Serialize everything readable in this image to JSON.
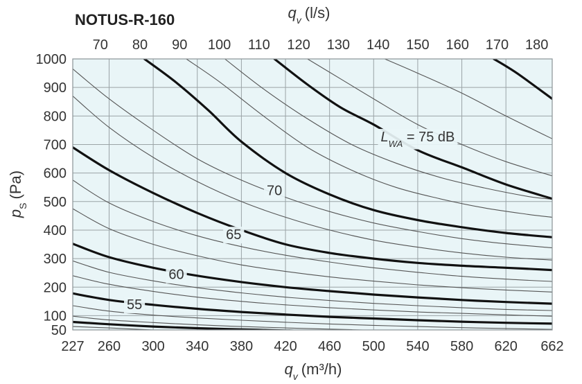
{
  "chart_data": {
    "type": "line",
    "title": "NOTUS-R-160",
    "x_bottom": {
      "label_symbol": "q",
      "label_sub": "v",
      "label_unit": "(m³/h)",
      "ticks": [
        "227",
        "260",
        "300",
        "340",
        "380",
        "420",
        "460",
        "500",
        "540",
        "580",
        "620",
        "662"
      ],
      "range": [
        227,
        662
      ]
    },
    "x_top": {
      "label_symbol": "q",
      "label_sub": "v",
      "label_unit": "(l/s)",
      "ticks": [
        "70",
        "80",
        "90",
        "100",
        "110",
        "120",
        "130",
        "140",
        "150",
        "160",
        "170",
        "180"
      ]
    },
    "y": {
      "label_symbol": "p",
      "label_sub": "S",
      "label_unit": "(Pa)",
      "ticks": [
        "50",
        "100",
        "200",
        "300",
        "400",
        "500",
        "600",
        "700",
        "800",
        "900",
        "1000"
      ],
      "range": [
        50,
        1000
      ]
    },
    "background_color": "#e9f5f7",
    "grid_color": "#9aa3a6",
    "major_line_color": "#111111",
    "minor_line_color": "#555555",
    "label_gap_color": "#c8c8c8",
    "series": [
      {
        "kind": "minor",
        "x": [
          227,
          260,
          300,
          340,
          380,
          420,
          427
        ],
        "y": [
          62,
          57,
          50,
          45,
          40,
          35,
          32
        ]
      },
      {
        "kind": "major",
        "x": [
          227,
          260,
          300,
          340,
          380,
          420,
          430,
          500,
          540,
          580,
          620,
          662
        ],
        "y": [
          78,
          70,
          62,
          56,
          52,
          48,
          47,
          35,
          33,
          29,
          27,
          25
        ]
      },
      {
        "kind": "minor",
        "x": [
          227,
          260,
          300,
          340,
          380,
          420,
          460,
          500,
          540,
          580,
          620,
          662
        ],
        "y": [
          98,
          85,
          76,
          68,
          62,
          57,
          53,
          49,
          46,
          43,
          41,
          40
        ]
      },
      {
        "kind": "minor",
        "x": [
          227,
          260,
          300,
          340,
          380,
          420,
          460,
          500,
          540,
          580,
          620,
          662
        ],
        "y": [
          135,
          116,
          102,
          92,
          84,
          77,
          71,
          66,
          62,
          58,
          55,
          52
        ]
      },
      {
        "kind": "major",
        "x": [
          227,
          260,
          300,
          340,
          380,
          420,
          460,
          500,
          540,
          580,
          620,
          662
        ],
        "y": [
          178,
          155,
          138,
          124,
          113,
          104,
          96,
          90,
          84,
          79,
          75,
          72
        ]
      },
      {
        "kind": "minor",
        "x": [
          227,
          260,
          300,
          340,
          380,
          420,
          460,
          500,
          540,
          580,
          620,
          662
        ],
        "y": [
          240,
          210,
          185,
          165,
          150,
          138,
          128,
          120,
          113,
          108,
          103,
          98
        ]
      },
      {
        "kind": "minor",
        "x": [
          227,
          260,
          300,
          340,
          380,
          420,
          460,
          500,
          540,
          580,
          620,
          662
        ],
        "y": [
          292,
          252,
          222,
          198,
          180,
          165,
          153,
          143,
          135,
          128,
          122,
          118
        ]
      },
      {
        "kind": "major",
        "x": [
          227,
          260,
          300,
          340,
          380,
          420,
          460,
          500,
          540,
          580,
          620,
          662
        ],
        "y": [
          352,
          305,
          268,
          240,
          218,
          200,
          186,
          174,
          164,
          155,
          148,
          142
        ]
      },
      {
        "kind": "minor",
        "x": [
          227,
          260,
          300,
          340,
          380,
          420,
          460,
          500,
          540,
          580,
          620,
          662
        ],
        "y": [
          475,
          405,
          350,
          310,
          278,
          255,
          236,
          221,
          208,
          198,
          190,
          183
        ]
      },
      {
        "kind": "minor",
        "x": [
          227,
          260,
          300,
          340,
          380,
          420,
          460,
          500,
          540,
          580,
          620,
          662
        ],
        "y": [
          575,
          495,
          430,
          380,
          342,
          312,
          288,
          268,
          252,
          238,
          228,
          220
        ]
      },
      {
        "kind": "major",
        "x": [
          227,
          260,
          300,
          340,
          380,
          420,
          460,
          500,
          540,
          580,
          620,
          662
        ],
        "y": [
          690,
          610,
          530,
          460,
          400,
          350,
          320,
          300,
          285,
          275,
          268,
          260
        ]
      },
      {
        "kind": "minor",
        "x": [
          227,
          260,
          300,
          340,
          380,
          420,
          460,
          500,
          540,
          580,
          620,
          662
        ],
        "y": [
          870,
          760,
          655,
          570,
          500,
          445,
          400,
          365,
          340,
          320,
          305,
          295
        ]
      },
      {
        "kind": "minor",
        "x": [
          227,
          260,
          300,
          340,
          380,
          420,
          460,
          500,
          540,
          580,
          620,
          662
        ],
        "y": [
          965,
          860,
          750,
          650,
          575,
          515,
          465,
          425,
          395,
          370,
          352,
          338
        ]
      },
      {
        "kind": "major",
        "x": [
          292,
          320,
          350,
          380,
          420,
          460,
          500,
          540,
          580,
          620,
          662
        ],
        "y": [
          1000,
          920,
          820,
          710,
          600,
          525,
          470,
          435,
          410,
          390,
          375
        ]
      },
      {
        "kind": "minor",
        "x": [
          330,
          360,
          400,
          440,
          480,
          520,
          560,
          600,
          640,
          662
        ],
        "y": [
          1000,
          920,
          800,
          690,
          610,
          550,
          510,
          478,
          455,
          445
        ]
      },
      {
        "kind": "minor",
        "x": [
          365,
          400,
          440,
          480,
          520,
          560,
          600,
          640,
          662
        ],
        "y": [
          1000,
          895,
          790,
          700,
          635,
          585,
          548,
          518,
          508
        ]
      },
      {
        "kind": "major",
        "x": [
          410,
          440,
          470,
          500,
          540,
          580,
          620,
          662
        ],
        "y": [
          1000,
          910,
          830,
          770,
          680,
          620,
          560,
          510
        ]
      },
      {
        "kind": "minor",
        "x": [
          440,
          470,
          500,
          540,
          580,
          620,
          662
        ],
        "y": [
          1000,
          930,
          860,
          770,
          700,
          640,
          590
        ]
      },
      {
        "kind": "minor",
        "x": [
          510,
          540,
          580,
          620,
          662
        ],
        "y": [
          1000,
          950,
          880,
          800,
          720
        ]
      },
      {
        "kind": "major",
        "x": [
          609,
          630,
          662
        ],
        "y": [
          1000,
          950,
          860
        ]
      }
    ],
    "annotations": [
      {
        "text": "55",
        "x": 283,
        "y": 140
      },
      {
        "text": "60",
        "x": 321,
        "y": 245
      },
      {
        "text": "65",
        "x": 373,
        "y": 385
      },
      {
        "text": "70",
        "x": 410,
        "y": 540
      },
      {
        "text": "75 dB",
        "x": 540,
        "y": 728,
        "prefix": "L",
        "prefix_sub": "WA",
        "prefix_sep": " = "
      }
    ]
  }
}
